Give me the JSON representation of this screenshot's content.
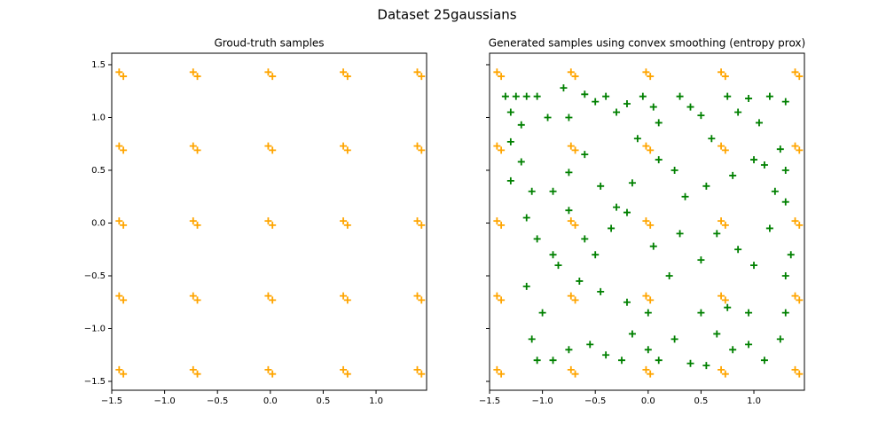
{
  "title": "Dataset 25gaussians",
  "chart_data": [
    {
      "type": "scatter",
      "title": "Groud-truth samples",
      "marker": "+",
      "xlim": [
        -1.5,
        1.478
      ],
      "ylim": [
        -1.584,
        1.609
      ],
      "xticks": [
        {
          "value": -1.5,
          "label": "−1.5"
        },
        {
          "value": -1.0,
          "label": "−1.0"
        },
        {
          "value": -0.5,
          "label": "−0.5"
        },
        {
          "value": 0.0,
          "label": "0.0"
        },
        {
          "value": 0.5,
          "label": "0.5"
        },
        {
          "value": 1.0,
          "label": "1.0"
        }
      ],
      "yticks": [
        {
          "value": -1.5,
          "label": "−1.5"
        },
        {
          "value": -1.0,
          "label": "−1.0"
        },
        {
          "value": -0.5,
          "label": "−0.5"
        },
        {
          "value": 0.0,
          "label": "0.0"
        },
        {
          "value": 0.5,
          "label": "0.5"
        },
        {
          "value": 1.0,
          "label": "1.0"
        },
        {
          "value": 1.5,
          "label": "1.5"
        }
      ],
      "show_ytick_labels": true,
      "series": [
        {
          "color": "#ffa500",
          "x": [
            -1.43,
            -1.39,
            -1.43,
            -1.39,
            -1.43,
            -1.39,
            -1.43,
            -1.39,
            -1.43,
            -1.39,
            -0.73,
            -0.69,
            -0.73,
            -0.69,
            -0.73,
            -0.69,
            -0.73,
            -0.69,
            -0.73,
            -0.69,
            -0.02,
            0.02,
            -0.02,
            0.02,
            -0.02,
            0.02,
            -0.02,
            0.02,
            -0.02,
            0.02,
            0.69,
            0.73,
            0.69,
            0.73,
            0.69,
            0.73,
            0.69,
            0.73,
            0.69,
            0.73,
            1.39,
            1.43,
            1.39,
            1.43,
            1.39,
            1.43,
            1.39,
            1.43,
            1.39,
            1.43
          ],
          "values": [
            1.43,
            1.39,
            0.73,
            0.69,
            0.02,
            -0.02,
            -0.69,
            -0.73,
            -1.39,
            -1.43,
            1.43,
            1.39,
            0.73,
            0.69,
            0.02,
            -0.02,
            -0.69,
            -0.73,
            -1.39,
            -1.43,
            1.43,
            1.39,
            0.73,
            0.69,
            0.02,
            -0.02,
            -0.69,
            -0.73,
            -1.39,
            -1.43,
            1.43,
            1.39,
            0.73,
            0.69,
            0.02,
            -0.02,
            -0.69,
            -0.73,
            -1.39,
            -1.43,
            1.43,
            1.39,
            0.73,
            0.69,
            0.02,
            -0.02,
            -0.69,
            -0.73,
            -1.39,
            -1.43
          ]
        }
      ]
    },
    {
      "type": "scatter",
      "title": "Generated samples using convex smoothing (entropy prox)",
      "marker": "+",
      "xlim": [
        -1.5,
        1.478
      ],
      "ylim": [
        -1.584,
        1.609
      ],
      "xticks": [
        {
          "value": -1.5,
          "label": "−1.5"
        },
        {
          "value": -1.0,
          "label": "−1.0"
        },
        {
          "value": -0.5,
          "label": "−0.5"
        },
        {
          "value": 0.0,
          "label": "0.0"
        },
        {
          "value": 0.5,
          "label": "0.5"
        },
        {
          "value": 1.0,
          "label": "1.0"
        }
      ],
      "yticks": [
        -1.5,
        -1.0,
        -0.5,
        0.0,
        0.5,
        1.0,
        1.5
      ],
      "show_ytick_labels": false,
      "series": [
        {
          "color": "#ffa500",
          "x": [
            -1.43,
            -1.39,
            -1.43,
            -1.39,
            -1.43,
            -1.39,
            -1.43,
            -1.39,
            -1.43,
            -1.39,
            -0.73,
            -0.69,
            -0.73,
            -0.69,
            -0.73,
            -0.69,
            -0.73,
            -0.69,
            -0.73,
            -0.69,
            -0.02,
            0.02,
            -0.02,
            0.02,
            -0.02,
            0.02,
            -0.02,
            0.02,
            -0.02,
            0.02,
            0.69,
            0.73,
            0.69,
            0.73,
            0.69,
            0.73,
            0.69,
            0.73,
            0.69,
            0.73,
            1.39,
            1.43,
            1.39,
            1.43,
            1.39,
            1.43,
            1.39,
            1.43,
            1.39,
            1.43
          ],
          "values": [
            1.43,
            1.39,
            0.73,
            0.69,
            0.02,
            -0.02,
            -0.69,
            -0.73,
            -1.39,
            -1.43,
            1.43,
            1.39,
            0.73,
            0.69,
            0.02,
            -0.02,
            -0.69,
            -0.73,
            -1.39,
            -1.43,
            1.43,
            1.39,
            0.73,
            0.69,
            0.02,
            -0.02,
            -0.69,
            -0.73,
            -1.39,
            -1.43,
            1.43,
            1.39,
            0.73,
            0.69,
            0.02,
            -0.02,
            -0.69,
            -0.73,
            -1.39,
            -1.43,
            1.43,
            1.39,
            0.73,
            0.69,
            0.02,
            -0.02,
            -0.69,
            -0.73,
            -1.39,
            -1.43
          ]
        },
        {
          "color": "#008000",
          "x": [
            -1.35,
            -1.3,
            -1.25,
            -1.2,
            -1.15,
            -1.05,
            -0.95,
            -0.8,
            -0.75,
            -0.6,
            -0.5,
            -0.4,
            -0.3,
            -0.2,
            -0.1,
            -0.05,
            0.05,
            0.1,
            0.3,
            0.4,
            0.5,
            0.6,
            0.75,
            0.85,
            0.95,
            1.05,
            1.15,
            1.3,
            1.25,
            1.3,
            -1.3,
            -1.2,
            -1.3,
            -1.1,
            -0.9,
            -0.75,
            -0.6,
            -0.45,
            -0.3,
            -0.15,
            0.1,
            0.25,
            0.35,
            0.55,
            0.8,
            1.0,
            1.1,
            1.2,
            1.3,
            -1.15,
            -1.05,
            -0.9,
            -0.75,
            -0.6,
            -0.5,
            -0.35,
            -0.2,
            0.05,
            0.3,
            0.5,
            0.65,
            0.85,
            1.0,
            1.15,
            1.3,
            1.35,
            -1.15,
            -1.0,
            -0.85,
            -0.65,
            -0.45,
            -0.2,
            0.0,
            0.2,
            0.5,
            0.75,
            0.95,
            1.3,
            -1.1,
            -1.05,
            -0.9,
            -0.75,
            -0.55,
            -0.4,
            -0.25,
            -0.15,
            0.0,
            0.1,
            0.25,
            0.4,
            0.55,
            0.65,
            0.8,
            0.95,
            1.1,
            1.25
          ],
          "values": [
            1.2,
            1.05,
            1.2,
            0.93,
            1.2,
            1.2,
            1.0,
            1.28,
            1.0,
            1.22,
            1.15,
            1.2,
            1.05,
            1.13,
            0.8,
            1.2,
            1.1,
            0.95,
            1.2,
            1.1,
            1.02,
            0.8,
            1.2,
            1.05,
            1.18,
            0.95,
            1.2,
            1.15,
            0.7,
            0.5,
            0.77,
            0.58,
            0.4,
            0.3,
            0.3,
            0.48,
            0.65,
            0.35,
            0.15,
            0.38,
            0.6,
            0.5,
            0.25,
            0.35,
            0.45,
            0.6,
            0.55,
            0.3,
            0.2,
            0.05,
            -0.15,
            -0.3,
            0.12,
            -0.15,
            -0.3,
            -0.05,
            0.1,
            -0.22,
            -0.1,
            -0.35,
            -0.1,
            -0.25,
            -0.4,
            -0.05,
            -0.5,
            -0.3,
            -0.6,
            -0.85,
            -0.4,
            -0.55,
            -0.65,
            -0.75,
            -0.85,
            -0.5,
            -0.85,
            -0.8,
            -0.85,
            -0.85,
            -1.1,
            -1.3,
            -1.3,
            -1.2,
            -1.15,
            -1.25,
            -1.3,
            -1.05,
            -1.2,
            -1.3,
            -1.1,
            -1.33,
            -1.35,
            -1.05,
            -1.2,
            -1.15,
            -1.3,
            -1.1
          ]
        }
      ]
    }
  ]
}
